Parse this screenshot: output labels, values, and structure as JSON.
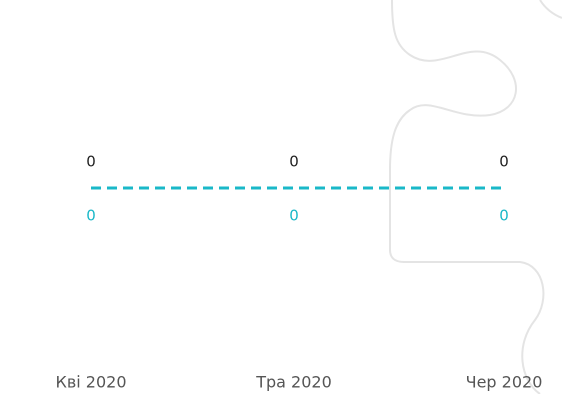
{
  "chart_data": {
    "type": "line",
    "categories": [
      "Кві 2020",
      "Тра 2020",
      "Чер 2020"
    ],
    "series": [
      {
        "color": "#1ab8c8",
        "label_color": "#222222",
        "label_position": "above",
        "dashed": true,
        "values": [
          0,
          0,
          0
        ]
      },
      {
        "color": "#1ab8c8",
        "label_color": "#1ab8c8",
        "label_position": "below",
        "dashed": true,
        "values": [
          0,
          0,
          0
        ]
      }
    ]
  }
}
